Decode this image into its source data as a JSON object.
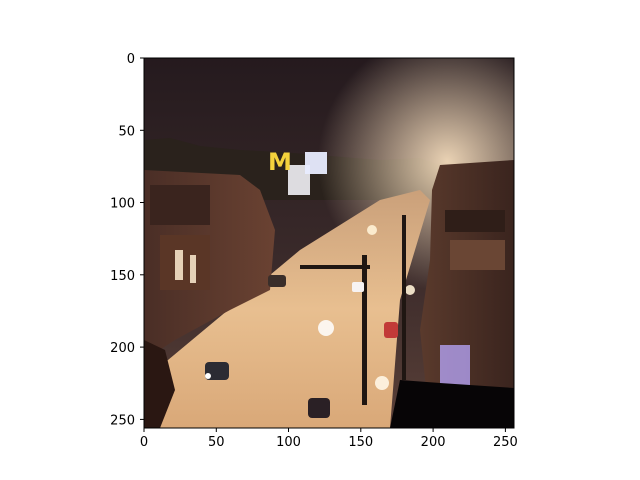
{
  "figure": {
    "x_ticks": [
      "0",
      "50",
      "100",
      "150",
      "200",
      "250"
    ],
    "y_ticks": [
      "0",
      "50",
      "100",
      "150",
      "200",
      "250"
    ],
    "x_tick_values": [
      0,
      50,
      100,
      150,
      200,
      250
    ],
    "y_tick_values": [
      0,
      50,
      100,
      150,
      200,
      250
    ],
    "image_extent": [
      0,
      256
    ],
    "sign_text": "M"
  },
  "colors": {
    "sky": "#2a1e22",
    "street_glow": "#f0c38a",
    "buildings": "#3a2a24",
    "sign_yellow": "#f4d23c"
  }
}
